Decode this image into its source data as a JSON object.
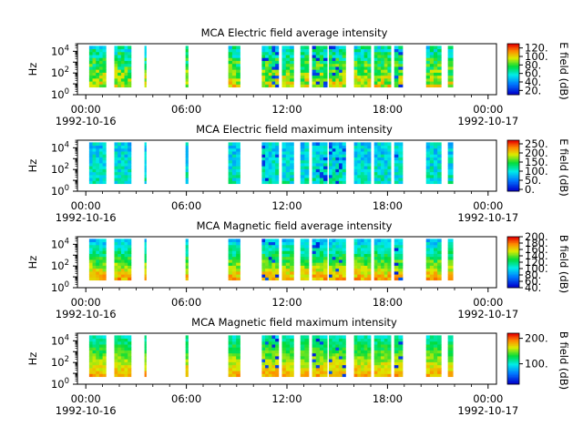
{
  "chart_data": [
    {
      "type": "heatmap",
      "title": "MCA  Electric field average intensity",
      "ylabel": "Hz",
      "colorbar_label": "E field (dB)",
      "colorbar_ticks": [
        "120.",
        "100.",
        "80.",
        "60.",
        "40.",
        "20."
      ],
      "colorbar_values": [
        120,
        100,
        80,
        60,
        40,
        20
      ],
      "colorbar_range": [
        10,
        130
      ]
    },
    {
      "type": "heatmap",
      "title": "MCA  Electric field maximum intensity",
      "ylabel": "Hz",
      "colorbar_label": "E field (dB)",
      "colorbar_ticks": [
        "250.",
        "200.",
        "150.",
        "100.",
        "50.",
        "0."
      ],
      "colorbar_values": [
        250,
        200,
        150,
        100,
        50,
        0
      ],
      "colorbar_range": [
        -10,
        270
      ]
    },
    {
      "type": "heatmap",
      "title": "MCA  Magnetic field average intensity",
      "ylabel": "Hz",
      "colorbar_label": "B field (dB)",
      "colorbar_ticks": [
        "200.",
        "180.",
        "160.",
        "140.",
        "120.",
        "100.",
        "80.",
        "60.",
        "40."
      ],
      "colorbar_values": [
        200,
        180,
        160,
        140,
        120,
        100,
        80,
        60,
        40
      ],
      "colorbar_range": [
        40,
        200
      ]
    },
    {
      "type": "heatmap",
      "title": "MCA  Magnetic field maximum intensity",
      "ylabel": "Hz",
      "colorbar_label": "B field (dB)",
      "colorbar_ticks": [
        "200.",
        "100."
      ],
      "colorbar_values": [
        200,
        100
      ],
      "colorbar_range": [
        20,
        220
      ]
    }
  ],
  "shared_axes": {
    "x_range_hours": [
      -0.5,
      24.5
    ],
    "x_ticks": [
      {
        "hour": 0,
        "label": "00:00",
        "date": "1992-10-16"
      },
      {
        "hour": 6,
        "label": "06:00",
        "date": ""
      },
      {
        "hour": 12,
        "label": "12:00",
        "date": ""
      },
      {
        "hour": 18,
        "label": "18:00",
        "date": ""
      },
      {
        "hour": 24,
        "label": "00:00",
        "date": "1992-10-17"
      }
    ],
    "y_ticks": [
      {
        "exp": 0,
        "base": "10",
        "sup": "0"
      },
      {
        "exp": 2,
        "base": "10",
        "sup": "2"
      },
      {
        "exp": 4,
        "base": "10",
        "sup": "4"
      }
    ],
    "y_range_log10_hz": [
      0,
      4.7
    ],
    "data_log10_hz_range": [
      0.7,
      4.5
    ],
    "data_intervals_hours": [
      [
        0.2,
        1.2
      ],
      [
        1.7,
        2.7
      ],
      [
        3.5,
        3.6
      ],
      [
        5.95,
        6.1
      ],
      [
        8.5,
        9.2
      ],
      [
        10.5,
        11.5
      ],
      [
        11.7,
        12.4
      ],
      [
        12.8,
        13.3
      ],
      [
        13.5,
        14.4
      ],
      [
        14.5,
        15.5
      ],
      [
        16.0,
        17.0
      ],
      [
        17.2,
        18.2
      ],
      [
        18.4,
        18.9
      ],
      [
        20.3,
        21.2
      ],
      [
        21.6,
        21.9
      ]
    ]
  }
}
